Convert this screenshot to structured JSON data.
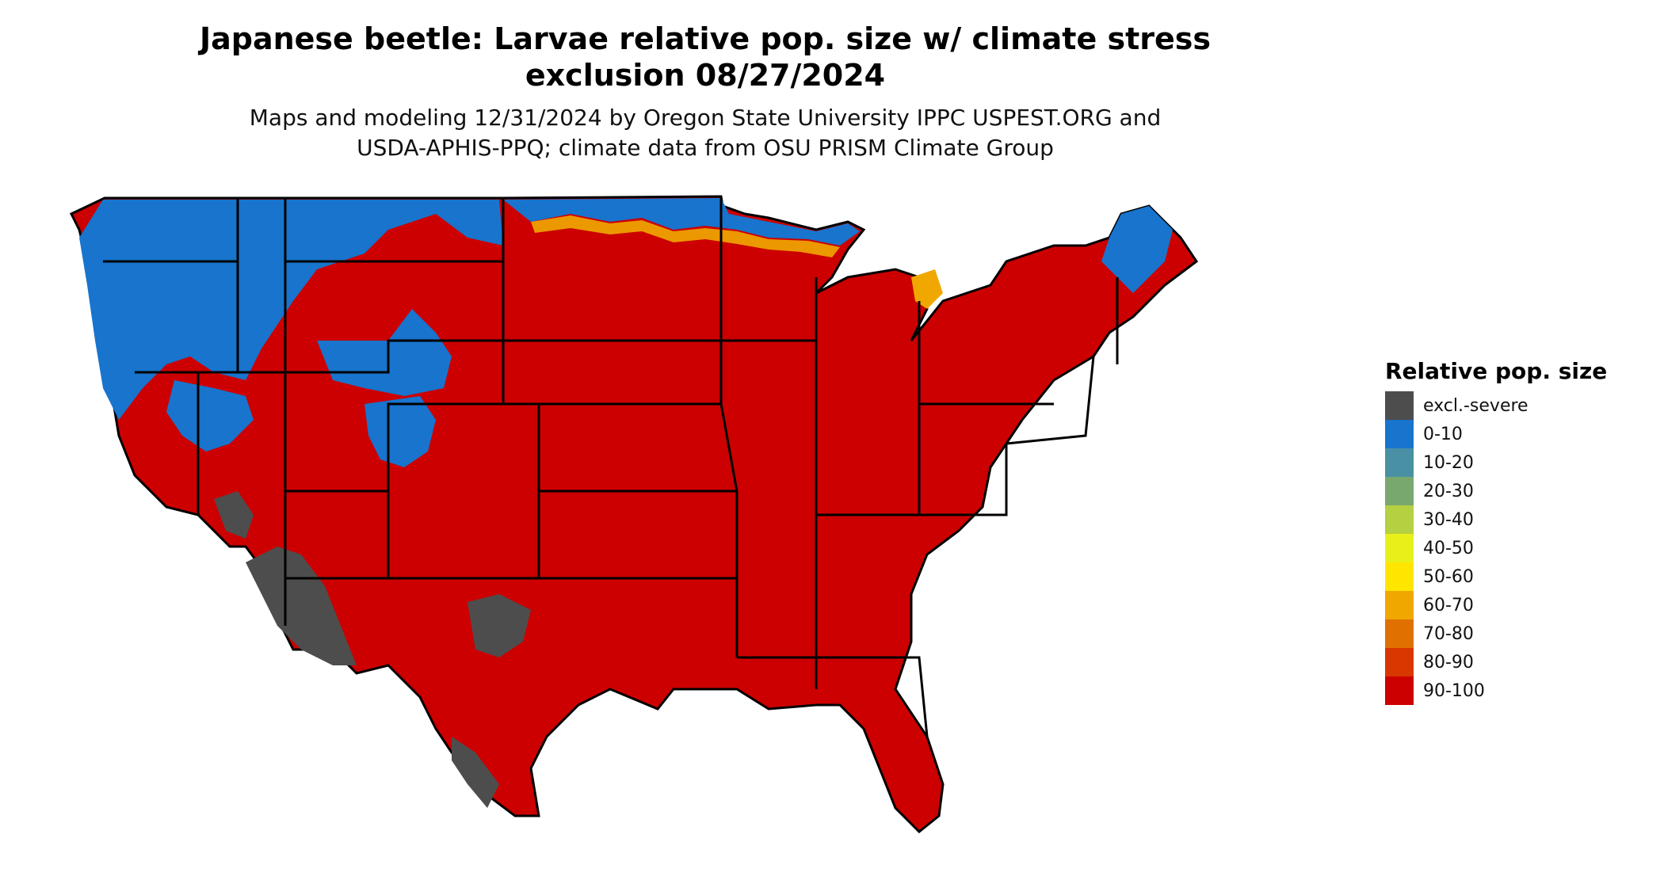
{
  "title_line1": "Japanese beetle: Larvae relative pop. size w/ climate stress",
  "title_line2": "exclusion 08/27/2024",
  "subtitle_line1": "Maps and modeling 12/31/2024 by Oregon State University IPPC USPEST.ORG and",
  "subtitle_line2": "USDA-APHIS-PPQ; climate data from OSU PRISM Climate Group",
  "legend": {
    "title": "Relative pop. size",
    "items": [
      {
        "label": "excl.-severe",
        "color": "#4d4d4d"
      },
      {
        "label": "0-10",
        "color": "#1874cd"
      },
      {
        "label": "10-20",
        "color": "#4a90a4"
      },
      {
        "label": "20-30",
        "color": "#78a86e"
      },
      {
        "label": "30-40",
        "color": "#b5d040"
      },
      {
        "label": "40-50",
        "color": "#e8f01a"
      },
      {
        "label": "50-60",
        "color": "#ffe600"
      },
      {
        "label": "60-70",
        "color": "#f0a800"
      },
      {
        "label": "70-80",
        "color": "#e07000"
      },
      {
        "label": "80-90",
        "color": "#d83800"
      },
      {
        "label": "90-100",
        "color": "#cc0000"
      }
    ]
  },
  "colors": {
    "background": "#ffffff",
    "border": "#000000"
  }
}
